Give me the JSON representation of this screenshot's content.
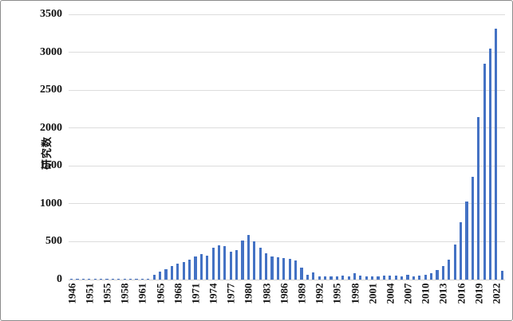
{
  "chart_data": {
    "type": "bar",
    "title": "",
    "xlabel": "",
    "ylabel": "研究数",
    "ylim": [
      0,
      3500
    ],
    "ytick_step": 500,
    "yticks": [
      0,
      500,
      1000,
      1500,
      2000,
      2500,
      3000,
      3500
    ],
    "x_label_every": 3,
    "grid": true,
    "legend_position": "none",
    "bar_color": "#4472C4",
    "categories": [
      1946,
      1948,
      1950,
      1951,
      1952,
      1954,
      1955,
      1956,
      1957,
      1958,
      1959,
      1960,
      1961,
      1963,
      1964,
      1965,
      1966,
      1967,
      1968,
      1969,
      1970,
      1971,
      1972,
      1973,
      1974,
      1975,
      1976,
      1977,
      1978,
      1979,
      1980,
      1981,
      1982,
      1983,
      1984,
      1985,
      1986,
      1987,
      1988,
      1989,
      1990,
      1991,
      1992,
      1993,
      1994,
      1995,
      1996,
      1997,
      1998,
      1999,
      2000,
      2001,
      2002,
      2003,
      2004,
      2005,
      2006,
      2007,
      2008,
      2009,
      2010,
      2011,
      2012,
      2013,
      2014,
      2015,
      2016,
      2017,
      2018,
      2019,
      2020,
      2021,
      2022,
      2023
    ],
    "values": [
      4,
      2,
      2,
      4,
      3,
      6,
      4,
      4,
      5,
      6,
      7,
      8,
      10,
      15,
      65,
      105,
      140,
      175,
      205,
      235,
      265,
      300,
      340,
      320,
      420,
      455,
      440,
      370,
      385,
      510,
      590,
      505,
      420,
      345,
      310,
      295,
      280,
      275,
      250,
      155,
      65,
      90,
      45,
      40,
      45,
      45,
      50,
      45,
      80,
      50,
      45,
      40,
      45,
      50,
      55,
      50,
      45,
      60,
      45,
      50,
      65,
      85,
      125,
      175,
      265,
      460,
      760,
      1030,
      1360,
      2140,
      2850,
      3050,
      3310,
      120
    ],
    "visible_x_tick_labels": [
      "1946",
      "1951",
      "1955",
      "1958",
      "1961",
      "1965",
      "1968",
      "1971",
      "1974",
      "1977",
      "1980",
      "1983",
      "1986",
      "1989",
      "1992",
      "1995",
      "1998",
      "2001",
      "2004",
      "2007",
      "2010",
      "2013",
      "2016",
      "2019",
      "2022"
    ]
  },
  "colors": {
    "bar": "#4472C4",
    "gridline": "#dcdcdc",
    "axis_text": "#111111",
    "border": "#8c8c8c",
    "background": "#ffffff"
  }
}
